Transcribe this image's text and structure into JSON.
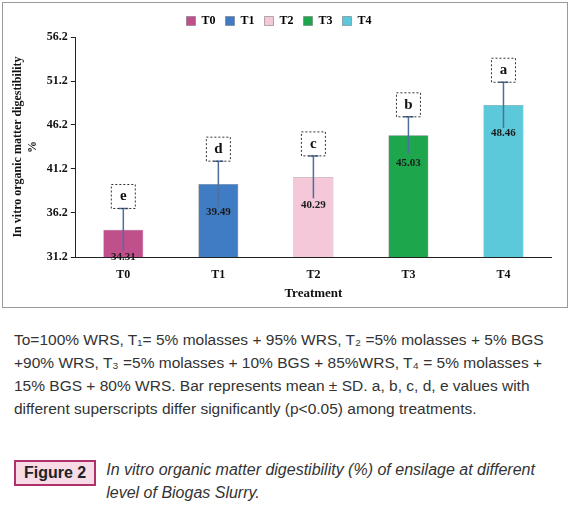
{
  "chart_data": {
    "type": "bar",
    "categories": [
      "T0",
      "T1",
      "T2",
      "T3",
      "T4"
    ],
    "values": [
      34.31,
      39.49,
      40.29,
      45.03,
      48.46
    ],
    "errors": [
      2.4,
      2.6,
      2.4,
      2.1,
      2.6
    ],
    "significance": [
      "e",
      "d",
      "c",
      "b",
      "a"
    ],
    "colors": [
      "#c0508c",
      "#3f7cc4",
      "#f4c7d9",
      "#1ea64c",
      "#5bc9d9"
    ],
    "x_label": "Treatment",
    "y_label": [
      "In vitro organic matter digestibility",
      "%"
    ],
    "ylim": [
      31.2,
      56.2
    ],
    "yticks": [
      31.2,
      36.2,
      41.2,
      46.2,
      51.2,
      56.2
    ],
    "grid": false,
    "legend": "top",
    "data_labels": true
  },
  "figure": {
    "caption": "To=100% WRS, T₁= 5% molasses + 95% WRS, T₂ =5% molasses + 5% BGS +90% WRS, T₃ =5% molasses + 10% BGS + 85%WRS, T₄ = 5% molasses + 15% BGS + 80% WRS. Bar represents mean ± SD. a, b, c, d, e values with different superscripts differ significantly (p<0.05) among treatments.",
    "label": "Figure 2",
    "title": "In vitro organic matter digestibility (%) of ensilage at different level of Biogas Slurry."
  }
}
